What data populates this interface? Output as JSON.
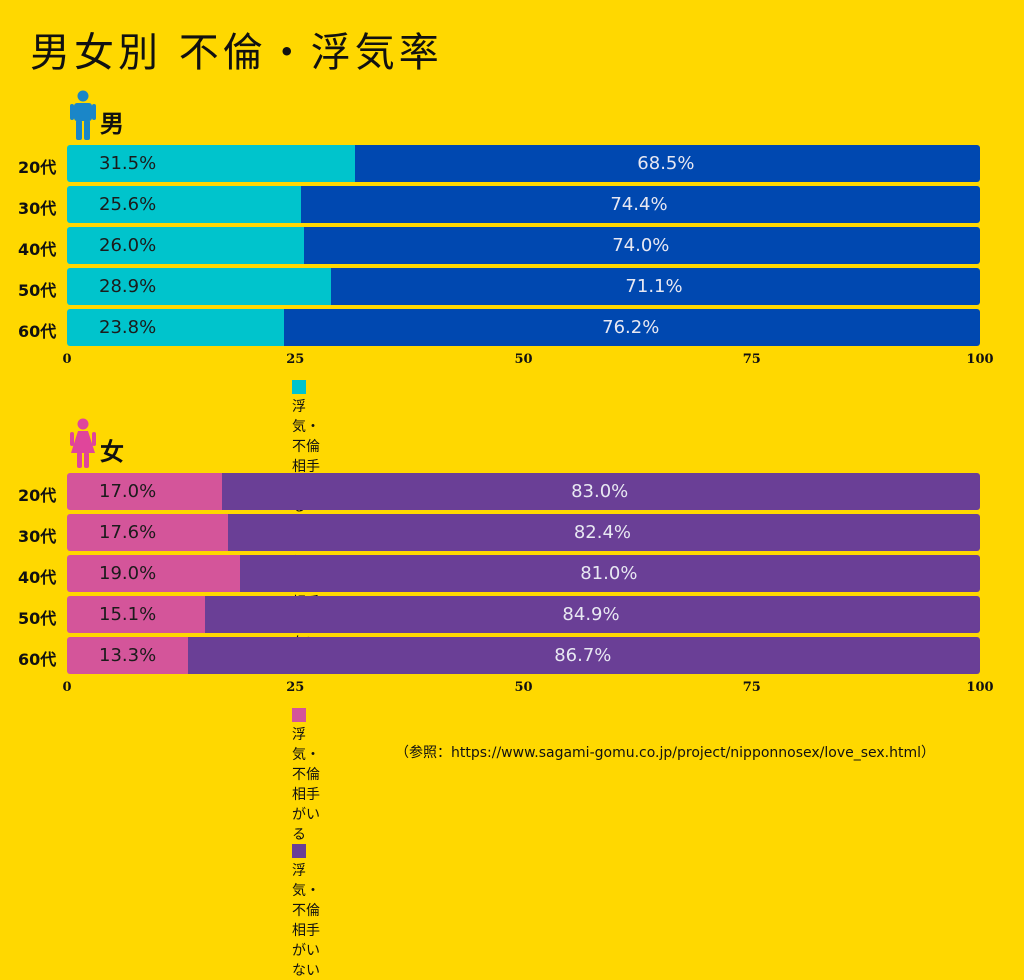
{
  "title": "男女別 不倫・浮気率",
  "source": "（参照：https://www.sagami-gomu.co.jp/project/nipponnosex/love_sex.html）",
  "sections": {
    "male": {
      "label": "男性",
      "icon": "male-person-icon",
      "icon_color": "#1A86C8",
      "legend": [
        "浮気・不倫相手がいる",
        "浮気・不倫相手がいない"
      ],
      "value_labels": {
        "yes": [
          "31.5%",
          "25.6%",
          "26.0%",
          "28.9%",
          "23.8%"
        ],
        "no": [
          "68.5%",
          "74.4%",
          "74.0%",
          "71.1%",
          "76.2%"
        ]
      }
    },
    "female": {
      "label": "女性",
      "icon": "female-person-icon",
      "icon_color": "#E0459B",
      "legend": [
        "浮気・不倫相手がいる",
        "浮気・不倫相手がいない"
      ],
      "value_labels": {
        "yes": [
          "17.0%",
          "17.6%",
          "19.0%",
          "15.1%",
          "13.3%"
        ],
        "no": [
          "83.0%",
          "82.4%",
          "81.0%",
          "84.9%",
          "86.7%"
        ]
      }
    }
  },
  "chart_data": [
    {
      "type": "bar",
      "orientation": "horizontal",
      "stacked": true,
      "title": "男性",
      "categories": [
        "20代",
        "30代",
        "40代",
        "50代",
        "60代"
      ],
      "series": [
        {
          "name": "浮気・不倫相手がいる",
          "color": "#00C4CC",
          "values": [
            31.5,
            25.6,
            26.0,
            28.9,
            23.8
          ]
        },
        {
          "name": "浮気・不倫相手がいない",
          "color": "#0048B0",
          "values": [
            68.5,
            74.4,
            74.0,
            71.1,
            76.2
          ]
        }
      ],
      "xlim": [
        0,
        100
      ],
      "xticks": [
        0,
        25,
        50,
        75,
        100
      ],
      "legend_position": "bottom",
      "grid": false
    },
    {
      "type": "bar",
      "orientation": "horizontal",
      "stacked": true,
      "title": "女性",
      "categories": [
        "20代",
        "30代",
        "40代",
        "50代",
        "60代"
      ],
      "series": [
        {
          "name": "浮気・不倫相手がいる",
          "color": "#D4559A",
          "values": [
            17.0,
            17.6,
            19.0,
            15.1,
            13.3
          ]
        },
        {
          "name": "浮気・不倫相手がいない",
          "color": "#6A3F96",
          "values": [
            83.0,
            82.4,
            81.0,
            84.9,
            86.7
          ]
        }
      ],
      "xlim": [
        0,
        100
      ],
      "xticks": [
        0,
        25,
        50,
        75,
        100
      ],
      "legend_position": "bottom",
      "grid": false
    }
  ]
}
